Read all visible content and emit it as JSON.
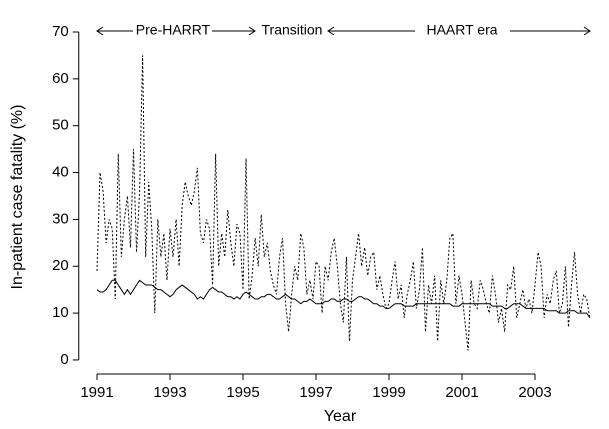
{
  "chart_data": {
    "type": "line",
    "xlabel": "Year",
    "ylabel": "In-patient case fatality (%)",
    "annotations": [
      "Pre-HARRT",
      "Transition",
      "HAART era"
    ],
    "x": [
      1991.0,
      1991.083,
      1991.167,
      1991.25,
      1991.333,
      1991.417,
      1991.5,
      1991.583,
      1991.667,
      1991.75,
      1991.833,
      1991.917,
      1992.0,
      1992.083,
      1992.167,
      1992.25,
      1992.333,
      1992.417,
      1992.5,
      1992.583,
      1992.667,
      1992.75,
      1992.833,
      1992.917,
      1993.0,
      1993.083,
      1993.167,
      1993.25,
      1993.333,
      1993.417,
      1993.5,
      1993.583,
      1993.667,
      1993.75,
      1993.833,
      1993.917,
      1994.0,
      1994.083,
      1994.167,
      1994.25,
      1994.333,
      1994.417,
      1994.5,
      1994.583,
      1994.667,
      1994.75,
      1994.833,
      1994.917,
      1995.0,
      1995.083,
      1995.167,
      1995.25,
      1995.333,
      1995.417,
      1995.5,
      1995.583,
      1995.667,
      1995.75,
      1995.833,
      1995.917,
      1996.0,
      1996.083,
      1996.167,
      1996.25,
      1996.333,
      1996.417,
      1996.5,
      1996.583,
      1996.667,
      1996.75,
      1996.833,
      1996.917,
      1997.0,
      1997.083,
      1997.167,
      1997.25,
      1997.333,
      1997.417,
      1997.5,
      1997.583,
      1997.667,
      1997.75,
      1997.833,
      1997.917,
      1998.0,
      1998.083,
      1998.167,
      1998.25,
      1998.333,
      1998.417,
      1998.5,
      1998.583,
      1998.667,
      1998.75,
      1998.833,
      1998.917,
      1999.0,
      1999.083,
      1999.167,
      1999.25,
      1999.333,
      1999.417,
      1999.5,
      1999.583,
      1999.667,
      1999.75,
      1999.833,
      1999.917,
      2000.0,
      2000.083,
      2000.167,
      2000.25,
      2000.333,
      2000.417,
      2000.5,
      2000.583,
      2000.667,
      2000.75,
      2000.833,
      2000.917,
      2001.0,
      2001.083,
      2001.167,
      2001.25,
      2001.333,
      2001.417,
      2001.5,
      2001.583,
      2001.667,
      2001.75,
      2001.833,
      2001.917,
      2002.0,
      2002.083,
      2002.167,
      2002.25,
      2002.333,
      2002.417,
      2002.5,
      2002.583,
      2002.667,
      2002.75,
      2002.833,
      2002.917,
      2003.0,
      2003.083,
      2003.167,
      2003.25,
      2003.333,
      2003.417,
      2003.5,
      2003.583,
      2003.667,
      2003.75,
      2003.833,
      2003.917,
      2004.0,
      2004.083,
      2004.167,
      2004.25,
      2004.333,
      2004.417,
      2004.5
    ],
    "series": [
      {
        "color": "#000000",
        "dashed": true,
        "values": [
          19,
          40,
          36,
          25,
          30,
          28,
          13,
          44,
          22,
          30,
          35,
          24,
          45,
          23,
          36,
          65,
          22,
          38,
          28,
          10,
          30,
          22,
          27,
          17,
          28,
          22,
          30,
          20,
          33,
          38,
          35,
          33,
          36,
          41,
          27,
          25,
          30,
          28,
          16,
          44,
          20,
          27,
          22,
          32,
          25,
          20,
          29,
          27,
          15,
          43,
          13,
          18,
          26,
          20,
          31,
          22,
          25,
          19,
          16,
          14,
          22,
          26,
          12,
          6,
          14,
          20,
          17,
          27,
          24,
          14,
          17,
          13,
          21,
          20,
          10,
          20,
          17,
          23,
          26,
          20,
          12,
          8,
          22,
          4,
          17,
          22,
          27,
          20,
          24,
          18,
          22,
          23,
          15,
          18,
          14,
          11,
          12,
          17,
          21,
          13,
          16,
          9,
          14,
          17,
          21,
          11,
          15,
          24,
          6,
          16,
          12,
          18,
          4,
          17,
          12,
          17,
          26,
          27,
          12,
          18,
          14,
          8,
          2,
          17,
          12,
          11,
          17,
          15,
          12,
          10,
          18,
          14,
          8,
          11,
          6,
          16,
          15,
          20,
          9,
          12,
          15,
          11,
          13,
          10,
          16,
          23,
          20,
          9,
          14,
          12,
          17,
          19,
          10,
          12,
          20,
          7,
          16,
          23,
          14,
          10,
          14,
          13,
          9
        ]
      },
      {
        "color": "#000000",
        "dashed": false,
        "values": [
          15,
          14.5,
          14.5,
          15,
          16,
          17,
          17,
          16,
          15,
          14,
          15,
          14,
          15,
          16,
          17,
          16.5,
          16,
          16,
          16,
          15.5,
          15,
          15,
          14.5,
          14,
          13.5,
          14,
          15,
          15.5,
          16,
          15.5,
          15,
          14.5,
          14,
          13,
          13.5,
          13,
          14,
          15,
          15.5,
          15,
          14.5,
          14.5,
          14,
          13.5,
          13.5,
          13,
          13.5,
          13,
          14,
          14.5,
          14,
          13.5,
          13,
          13,
          13.5,
          13.5,
          14,
          14,
          13.5,
          13,
          13,
          13.5,
          14,
          13.5,
          13,
          13,
          12.5,
          12,
          12.5,
          12.5,
          13,
          12.5,
          12,
          12,
          12,
          12.5,
          12.5,
          13,
          13,
          12.5,
          12.5,
          13,
          13,
          12.5,
          12.5,
          13,
          13.5,
          13.5,
          13,
          13,
          12.5,
          12,
          12,
          11.5,
          11.5,
          11,
          11,
          11.5,
          12,
          12,
          12,
          11.5,
          11.5,
          11.5,
          11.5,
          12,
          12,
          12,
          12,
          12,
          12,
          12,
          12,
          12,
          12,
          12,
          12,
          11.5,
          11.5,
          11.5,
          12,
          12,
          12,
          12,
          12,
          12,
          12,
          12,
          12,
          12,
          11.5,
          11.5,
          11.5,
          11.5,
          11,
          11,
          11.5,
          12,
          12,
          12,
          11.5,
          11,
          11,
          11,
          11,
          11,
          11,
          11,
          10.5,
          10.5,
          10.5,
          10.5,
          10,
          10,
          10,
          10.5,
          10.5,
          10.5,
          10,
          10,
          10,
          10,
          9
        ]
      }
    ],
    "xlim": [
      1990.5,
      2004.8
    ],
    "xticks": [
      1991,
      1993,
      1995,
      1997,
      1999,
      2001,
      2003
    ],
    "ylim": [
      -3,
      72.5
    ],
    "yticks": [
      0,
      10,
      20,
      30,
      40,
      50,
      60,
      70
    ],
    "grid": false
  }
}
